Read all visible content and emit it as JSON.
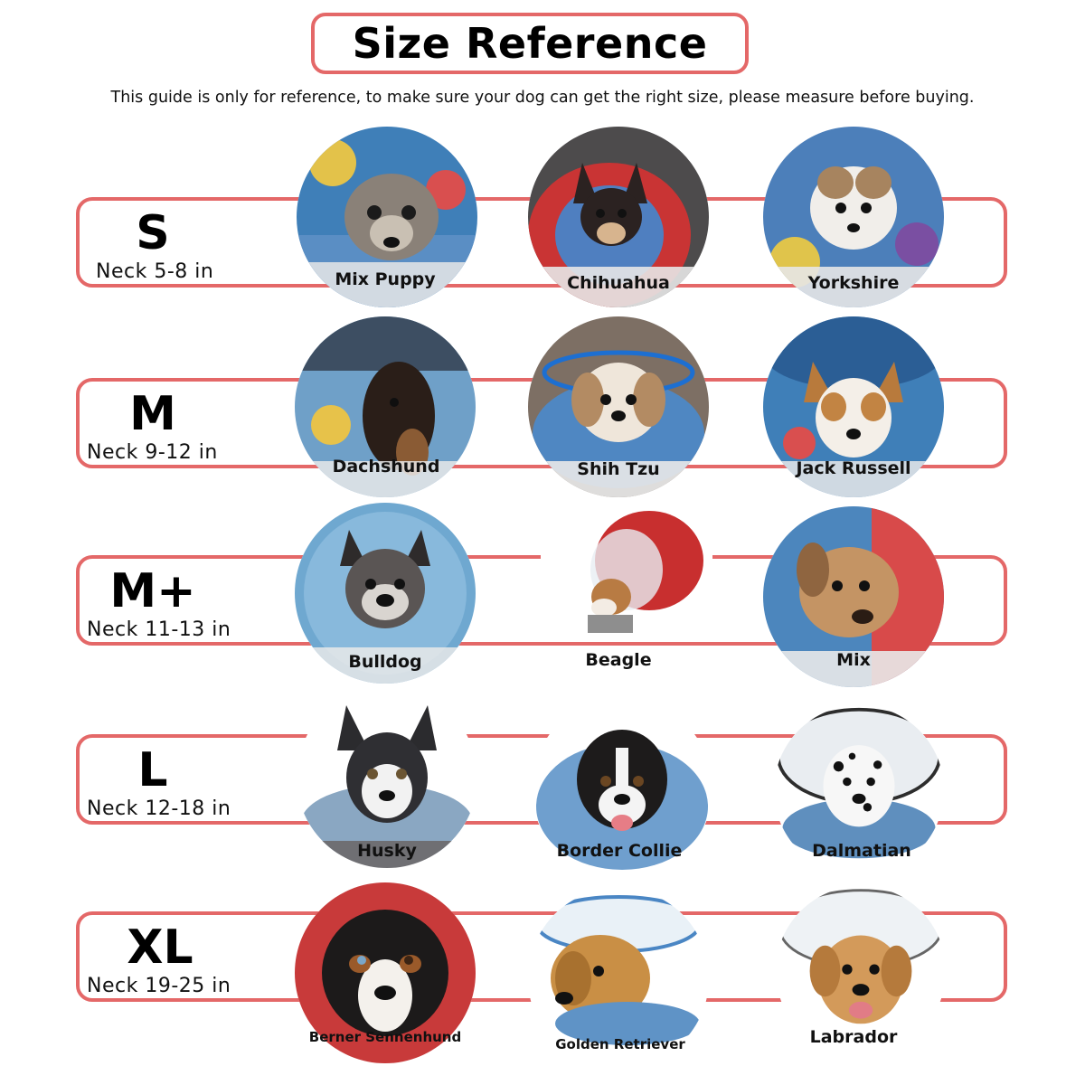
{
  "header": {
    "title": "Size Reference",
    "subtitle": "This guide is only for reference, to make sure your dog can get the right size, please measure before buying."
  },
  "colors": {
    "accent": "#e46868"
  },
  "sizes": [
    {
      "size": "S",
      "neck": "Neck 5-8 in",
      "dogs": [
        {
          "breed": "Mix Puppy",
          "icon": "dog-photo"
        },
        {
          "breed": "Chihuahua",
          "icon": "dog-photo"
        },
        {
          "breed": "Yorkshire",
          "icon": "dog-photo"
        }
      ]
    },
    {
      "size": "M",
      "neck": "Neck 9-12 in",
      "dogs": [
        {
          "breed": "Dachshund",
          "icon": "dog-photo"
        },
        {
          "breed": "Shih Tzu",
          "icon": "dog-photo"
        },
        {
          "breed": "Jack Russell",
          "icon": "dog-photo"
        }
      ]
    },
    {
      "size": "M+",
      "neck": "Neck 11-13 in",
      "dogs": [
        {
          "breed": "Bulldog",
          "icon": "dog-photo"
        },
        {
          "breed": "Beagle",
          "icon": "dog-photo"
        },
        {
          "breed": "Mix",
          "icon": "dog-photo"
        }
      ]
    },
    {
      "size": "L",
      "neck": "Neck 12-18 in",
      "dogs": [
        {
          "breed": "Husky",
          "icon": "dog-photo"
        },
        {
          "breed": "Border Collie",
          "icon": "dog-photo"
        },
        {
          "breed": "Dalmatian",
          "icon": "dog-photo"
        }
      ]
    },
    {
      "size": "XL",
      "neck": "Neck 19-25 in",
      "dogs": [
        {
          "breed": "Berner Sennenhund",
          "icon": "dog-photo"
        },
        {
          "breed": "Golden Retriever",
          "icon": "dog-photo"
        },
        {
          "breed": "Labrador",
          "icon": "dog-photo"
        }
      ]
    }
  ]
}
